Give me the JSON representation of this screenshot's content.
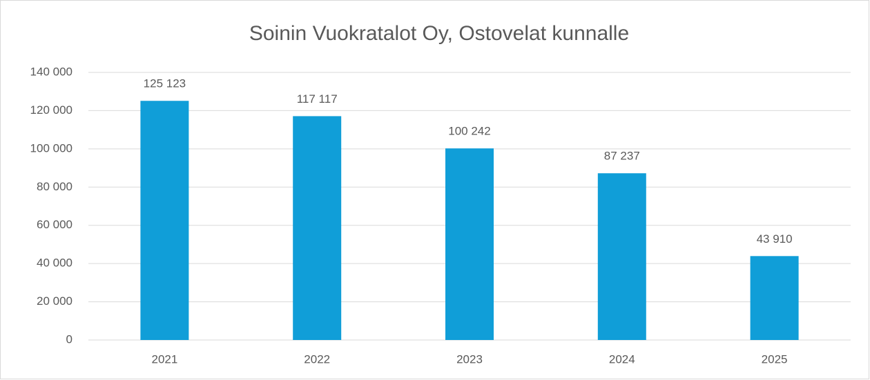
{
  "chart_data": {
    "type": "bar",
    "title": "Soinin Vuokratalot Oy, Ostovelat kunnalle",
    "categories": [
      "2021",
      "2022",
      "2023",
      "2024",
      "2025"
    ],
    "values": [
      125123,
      117117,
      100242,
      87237,
      43910
    ],
    "value_labels": [
      "125 123",
      "117 117",
      "100 242",
      "87 237",
      "43 910"
    ],
    "color": "#109ed8",
    "ylim": [
      0,
      140000
    ],
    "yticks": [
      0,
      {
        "value": 20000,
        "label": "20 000"
      },
      {
        "value": 40000,
        "label": "40 000"
      },
      {
        "value": 60000,
        "label": "60 000"
      },
      {
        "value": 80000,
        "label": "80 000"
      },
      {
        "value": 100000,
        "label": "100 000"
      },
      {
        "value": 120000,
        "label": "120 000"
      },
      {
        "value": 140000,
        "label": "140 000"
      }
    ],
    "grid": true
  }
}
